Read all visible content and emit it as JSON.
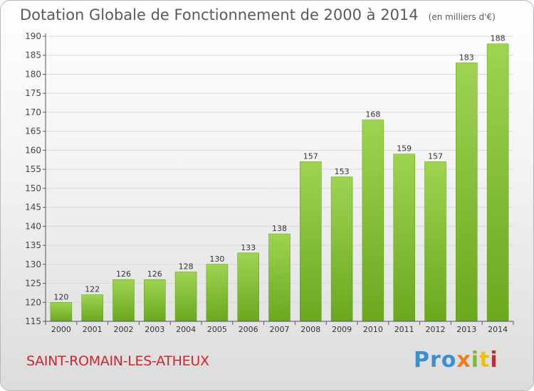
{
  "title": "Dotation Globale de Fonctionnement de 2000 à 2014",
  "unit": "(en milliers d'€)",
  "commune": "SAINT-ROMAIN-LES-ATHEUX",
  "logo": {
    "parts": [
      "Pro",
      "x",
      "i",
      "t",
      "i"
    ]
  },
  "colors": {
    "bar_light": "#9fd352",
    "bar_dark": "#6aa81e",
    "axis": "#555555",
    "grid": "#d8d8d8",
    "title": "#5a5a5a",
    "commune": "#d0262e"
  },
  "chart_data": {
    "type": "bar",
    "title": "Dotation Globale de Fonctionnement de 2000 à 2014",
    "ylabel": "(en milliers d'€)",
    "xlabel": "",
    "categories": [
      "2000",
      "2001",
      "2002",
      "2003",
      "2004",
      "2005",
      "2006",
      "2007",
      "2008",
      "2009",
      "2010",
      "2011",
      "2012",
      "2013",
      "2014"
    ],
    "values": [
      120,
      122,
      126,
      126,
      128,
      130,
      133,
      138,
      157,
      153,
      168,
      159,
      157,
      183,
      188
    ],
    "ylim": [
      115,
      190
    ],
    "yticks": [
      115,
      120,
      125,
      130,
      135,
      140,
      145,
      150,
      155,
      160,
      165,
      170,
      175,
      180,
      185,
      190
    ],
    "grid": true,
    "data_labels": true
  }
}
